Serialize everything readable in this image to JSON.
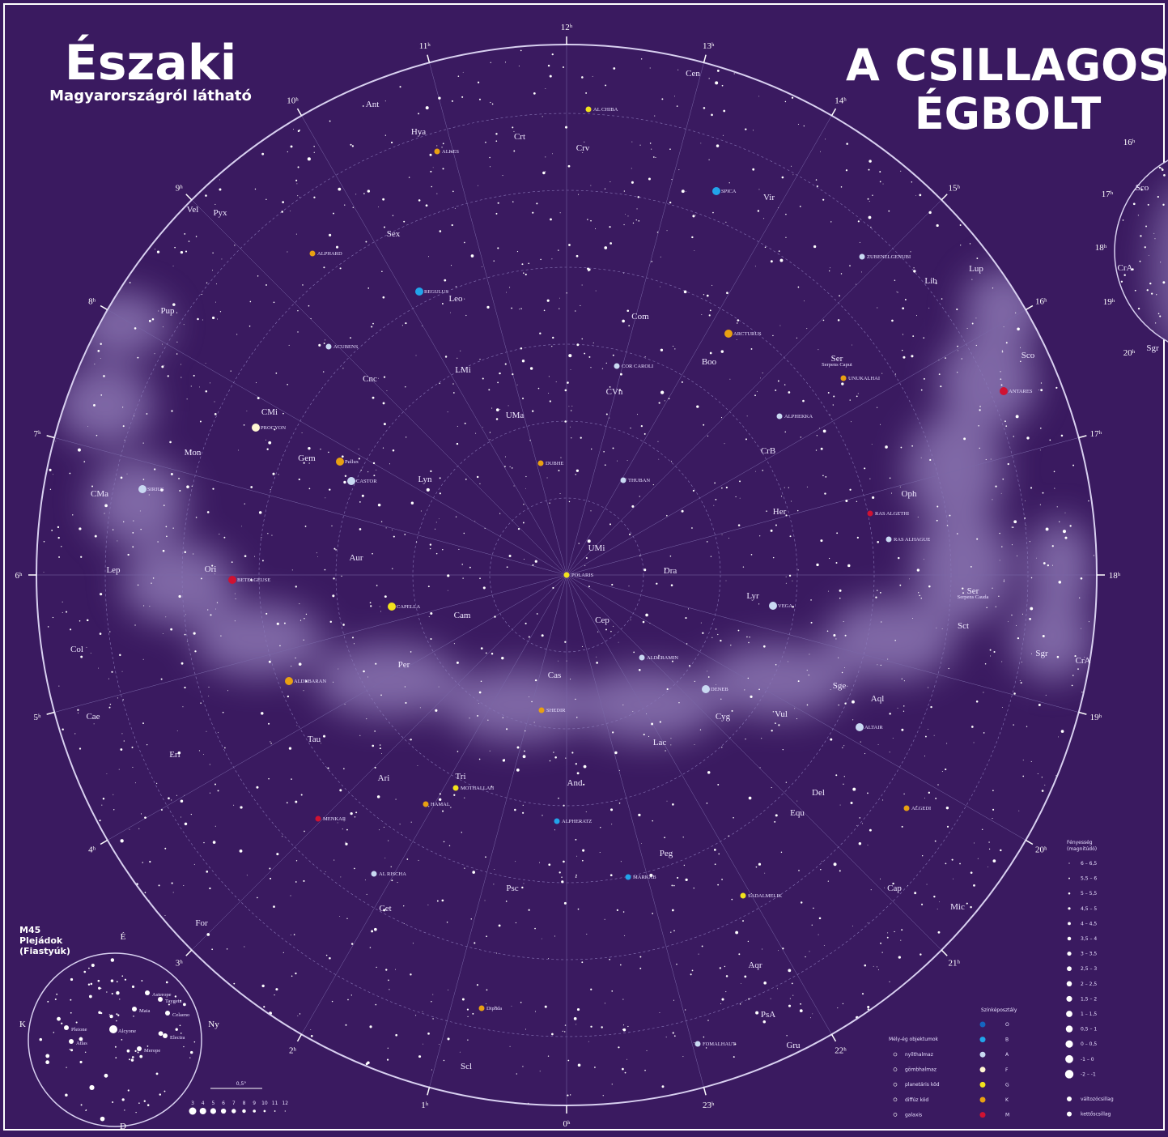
{
  "header": {
    "title_left": "Északi",
    "subtitle_left": "Magyarországról látható",
    "title_right_1": "A CSILLAGOS",
    "title_right_2": "ÉGBOLT"
  },
  "hours": [
    "12ʰ",
    "13ʰ",
    "14ʰ",
    "15ʰ",
    "16ʰ",
    "17ʰ",
    "18ʰ",
    "19ʰ",
    "20ʰ",
    "21ʰ",
    "22ʰ",
    "23ʰ",
    "0ʰ",
    "1ʰ",
    "2ʰ",
    "3ʰ",
    "4ʰ",
    "5ʰ",
    "6ʰ",
    "7ʰ",
    "8ʰ",
    "9ʰ",
    "10ʰ",
    "11ʰ"
  ],
  "constellations": [
    "Ant",
    "Hya",
    "Crt",
    "Crv",
    "Cen",
    "Vir",
    "Sex",
    "Vel",
    "Pyx",
    "Pup",
    "Leo",
    "LMi",
    "Com",
    "Boo",
    "Ser",
    "Lib",
    "Lup",
    "Sco",
    "CMi",
    "Cnc",
    "UMa",
    "CVn",
    "CrB",
    "Mon",
    "Gem",
    "Lyn",
    "CMa",
    "Oph",
    "Her",
    "UMi",
    "Dra",
    "Lep",
    "Ori",
    "Aur",
    "Lyr",
    "Cam",
    "Cep",
    "Ser",
    "Sct",
    "Col",
    "Per",
    "Cas",
    "Sgr",
    "CrA",
    "Sge",
    "Cyg",
    "Aql",
    "Cae",
    "Tau",
    "Lac",
    "Vul",
    "Eri",
    "Ari",
    "Tri",
    "And",
    "Del",
    "Equ",
    "Peg",
    "Cet",
    "Psc",
    "Cap",
    "Mic",
    "For",
    "Aqr",
    "PsA",
    "Scl",
    "Gru"
  ],
  "constellation_notes": [
    "Serpens Caput",
    "Serpens Cauda"
  ],
  "stars": [
    "SPICA",
    "ARCTURUS",
    "REGULUS",
    "PROCYON",
    "SIRIUS",
    "CASTOR",
    "Pollux",
    "CAPELLA",
    "BETELGEUSE",
    "ALDEBARAN",
    "VEGA",
    "DENEB",
    "ALTAIR",
    "ANTARES",
    "ALPHARD",
    "DUBHE",
    "POLARIS",
    "HAMAL",
    "ALPHERATZ",
    "MARKAB",
    "FOMALHAUT",
    "ALKES",
    "ACUBENS",
    "Diphda",
    "MENKAR",
    "RAS ALHAGUE",
    "RAS ALGETHI",
    "ALPHEKKA",
    "THUBAN",
    "ALDERAMIN",
    "UNUKALHAI",
    "ZUBENELGENUBI",
    "ALGEDI",
    "MOTHALLAH",
    "COR CAROLI",
    "SADALMELIK",
    "SHEDIR",
    "AL RISCHA",
    "AL CHIBA"
  ],
  "inset_right": {
    "hours": [
      "16ʰ",
      "17ʰ",
      "18ʰ",
      "19ʰ",
      "20ʰ"
    ],
    "constellations": [
      "Sco",
      "CrA",
      "Sgr"
    ]
  },
  "m45": {
    "title": [
      "M45",
      "Plejádok",
      "(Fiastyúk)"
    ],
    "directions": [
      "É",
      "D",
      "K",
      "Ny"
    ],
    "stars": [
      "Alcyone",
      "Atlas",
      "Pleione",
      "Electra",
      "Merope",
      "Maia",
      "Taygeta",
      "Asterope",
      "Celaeno"
    ],
    "scale": "0,5°",
    "magnitudes": [
      "3",
      "4",
      "5",
      "6",
      "7",
      "8",
      "9",
      "10",
      "11",
      "12"
    ]
  },
  "legend": {
    "brightness_title": "Fényesség",
    "brightness_subtitle": "(magnitúdó)",
    "brightness": [
      "6 – 6,5",
      "5,5 – 6",
      "5 – 5,5",
      "4,5 – 5",
      "4 – 4,5",
      "3,5 – 4",
      "3 – 3,5",
      "2,5 – 3",
      "2 – 2,5",
      "1,5 – 2",
      "1 – 1,5",
      "0,5 – 1",
      "0 – 0,5",
      "-1 – 0",
      "-2 – -1"
    ],
    "spectral_title": "Színképosztály",
    "spectral": [
      {
        "label": "O",
        "color": "#1565c0"
      },
      {
        "label": "B",
        "color": "#22a4ea"
      },
      {
        "label": "A",
        "color": "#c9d9f2"
      },
      {
        "label": "F",
        "color": "#fff6d2"
      },
      {
        "label": "G",
        "color": "#f2e21c"
      },
      {
        "label": "K",
        "color": "#e8a012"
      },
      {
        "label": "M",
        "color": "#d01232"
      }
    ],
    "deep_sky_title": "Mély-ég objektumok",
    "deep_sky": [
      "nyílthalmaz",
      "gömbhalmaz",
      "planetáris köd",
      "diffúz köd",
      "galaxis"
    ],
    "other": [
      "változócsillag",
      "kettőscsillag"
    ]
  }
}
